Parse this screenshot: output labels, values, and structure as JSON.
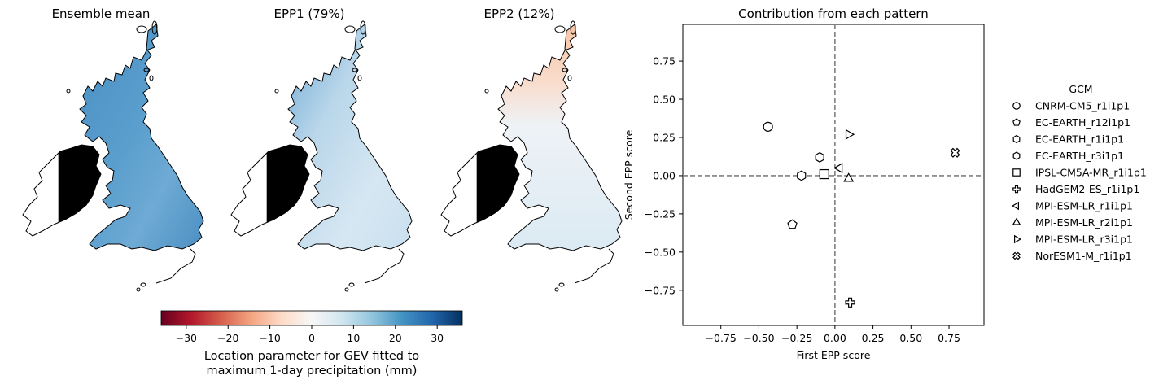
{
  "maps": {
    "panels": [
      {
        "title": "Ensemble mean",
        "pattern": "mean"
      },
      {
        "title": "EPP1 (79%)",
        "pattern": "epp1"
      },
      {
        "title": "EPP2 (12%)",
        "pattern": "epp2"
      }
    ]
  },
  "colorbar": {
    "colormap": "RdBu",
    "vmin": -36,
    "vmax": 36,
    "ticks": [
      "−30",
      "−20",
      "−10",
      "0",
      "10",
      "20",
      "30"
    ],
    "tick_values": [
      -30,
      -20,
      -10,
      0,
      10,
      20,
      30
    ],
    "label_line1": "Location parameter for GEV fitted to",
    "label_line2": "maximum 1-day precipitation (mm)"
  },
  "chart_data": {
    "type": "scatter",
    "title": "Contribution from each pattern",
    "xlabel": "First EPP score",
    "ylabel": "Second EPP score",
    "xlim": [
      -1.0,
      0.98
    ],
    "ylim": [
      -0.98,
      0.99
    ],
    "xticks": [
      "−0.75",
      "−0.50",
      "−0.25",
      "0.00",
      "0.25",
      "0.50",
      "0.75"
    ],
    "xtick_values": [
      -0.75,
      -0.5,
      -0.25,
      0,
      0.25,
      0.5,
      0.75
    ],
    "yticks": [
      "−0.75",
      "−0.50",
      "−0.25",
      "0.00",
      "0.25",
      "0.50",
      "0.75"
    ],
    "ytick_values": [
      -0.75,
      -0.5,
      -0.25,
      0,
      0.25,
      0.5,
      0.75
    ],
    "reference_lines": {
      "x": 0,
      "y": 0,
      "style": "dashed",
      "color": "#808080"
    },
    "legend": {
      "title": "GCM",
      "placement": "outside-right"
    },
    "series": [
      {
        "name": "CNRM-CM5_r1i1p1",
        "marker": "circle",
        "x": -0.44,
        "y": 0.32
      },
      {
        "name": "EC-EARTH_r12i1p1",
        "marker": "pentagon",
        "x": -0.28,
        "y": -0.32
      },
      {
        "name": "EC-EARTH_r1i1p1",
        "marker": "hexagon",
        "x": -0.22,
        "y": 0.0
      },
      {
        "name": "EC-EARTH_r3i1p1",
        "marker": "hexagon",
        "x": -0.1,
        "y": 0.12
      },
      {
        "name": "IPSL-CM5A-MR_r1i1p1",
        "marker": "square",
        "x": -0.07,
        "y": 0.01
      },
      {
        "name": "HadGEM2-ES_r1i1p1",
        "marker": "plus",
        "x": 0.1,
        "y": -0.83
      },
      {
        "name": "MPI-ESM-LR_r1i1p1",
        "marker": "triangle-left",
        "x": 0.03,
        "y": 0.05
      },
      {
        "name": "MPI-ESM-LR_r2i1p1",
        "marker": "triangle-up",
        "x": 0.09,
        "y": -0.02
      },
      {
        "name": "MPI-ESM-LR_r3i1p1",
        "marker": "triangle-right",
        "x": 0.09,
        "y": 0.27
      },
      {
        "name": "NorESM1-M_r1i1p1",
        "marker": "x-filled",
        "x": 0.79,
        "y": 0.15
      }
    ]
  }
}
